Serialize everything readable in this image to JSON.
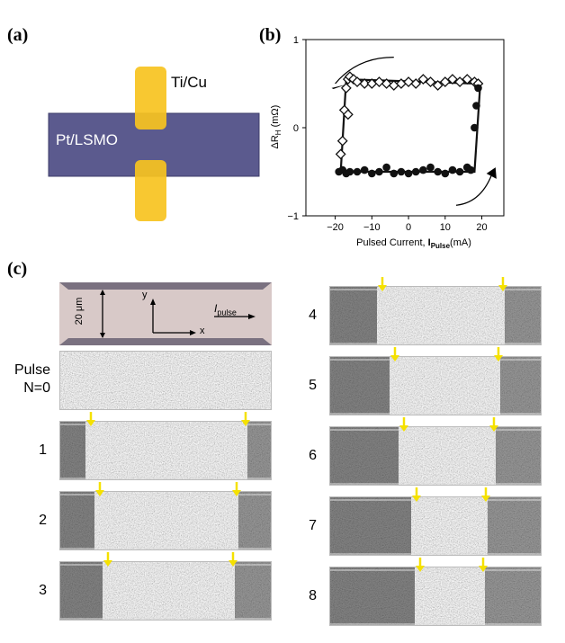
{
  "panel_a": {
    "label": "(a)",
    "electrode_label": "Ti/Cu",
    "film_label": "Pt/LSMO",
    "colors": {
      "film": "#5b5a8e",
      "electrode": "#f7c31f",
      "electrode_edge": "#e0a800"
    }
  },
  "panel_b": {
    "label": "(b)"
  },
  "chart_data": {
    "type": "scatter",
    "xlabel": "Pulsed Current, I_Pulse(mA)",
    "xlabel_main": "Pulsed Current, ",
    "xlabel_sym": "I",
    "xlabel_sub": "Pulse",
    "xlabel_end": "(mA)",
    "ylabel": "ΔR_H (mΩ)",
    "ylabel_main": "ΔR",
    "ylabel_sub": "H",
    "ylabel_end": " (mΩ)",
    "xlim": [
      -28,
      26
    ],
    "ylim": [
      -1,
      1
    ],
    "xticks": [
      -20,
      -10,
      0,
      10,
      20
    ],
    "xtick_labels": [
      "−20",
      "−10",
      "0",
      "10",
      "20"
    ],
    "yticks": [
      -1,
      0,
      1
    ],
    "ytick_labels": [
      "−1",
      "0",
      "1"
    ],
    "series": [
      {
        "marker": "open-diamond",
        "x": [
          -17,
          -16.5,
          -16,
          -15,
          -14,
          -12,
          -10,
          -8,
          -6,
          -4,
          -2,
          0,
          2,
          4,
          6,
          8,
          10,
          12,
          14,
          16,
          18,
          19,
          -17.5,
          -18,
          -18.5,
          -16.5
        ],
        "y": [
          0.45,
          0.55,
          0.58,
          0.55,
          0.52,
          0.5,
          0.5,
          0.52,
          0.5,
          0.48,
          0.5,
          0.52,
          0.5,
          0.55,
          0.52,
          0.48,
          0.52,
          0.55,
          0.52,
          0.55,
          0.52,
          0.5,
          0.2,
          -0.15,
          -0.3,
          0.15
        ]
      },
      {
        "marker": "filled-circle",
        "x": [
          -19,
          -18,
          -17,
          -16,
          -14,
          -12,
          -10,
          -8,
          -6,
          -4,
          -2,
          0,
          2,
          4,
          6,
          8,
          10,
          12,
          14,
          16,
          17,
          18,
          18.5,
          19
        ],
        "y": [
          -0.5,
          -0.48,
          -0.52,
          -0.5,
          -0.5,
          -0.48,
          -0.52,
          -0.5,
          -0.45,
          -0.52,
          -0.5,
          -0.52,
          -0.5,
          -0.48,
          -0.45,
          -0.5,
          -0.52,
          -0.48,
          -0.5,
          -0.45,
          -0.48,
          0.0,
          0.25,
          0.45
        ]
      }
    ]
  },
  "panel_c": {
    "label": "(c)",
    "schematic": {
      "width_label": "20 μm",
      "y_label": "y",
      "x_label": "x",
      "pulse_label_sym": "I",
      "pulse_label_sub": "pulse",
      "colors": {
        "channel": "#d8c9c8",
        "edge": "#7a7180"
      }
    },
    "pulse_label_line1": "Pulse",
    "pulse_label_line2": "N=0",
    "left_rows": [
      {
        "num": "1",
        "pulse": 1,
        "left_domain": 0.12,
        "right_domain": 0.12
      },
      {
        "num": "2",
        "pulse": 2,
        "left_domain": 0.16,
        "right_domain": 0.16
      },
      {
        "num": "3",
        "pulse": 3,
        "left_domain": 0.2,
        "right_domain": 0.18
      }
    ],
    "right_rows": [
      {
        "num": "4",
        "pulse": 4,
        "left_domain": 0.22,
        "right_domain": 0.18
      },
      {
        "num": "5",
        "pulse": 5,
        "left_domain": 0.28,
        "right_domain": 0.2
      },
      {
        "num": "6",
        "pulse": 6,
        "left_domain": 0.32,
        "right_domain": 0.22
      },
      {
        "num": "7",
        "pulse": 7,
        "left_domain": 0.38,
        "right_domain": 0.26
      },
      {
        "num": "8",
        "pulse": 8,
        "left_domain": 0.4,
        "right_domain": 0.27
      }
    ],
    "arrow_color": "#f5e100"
  }
}
